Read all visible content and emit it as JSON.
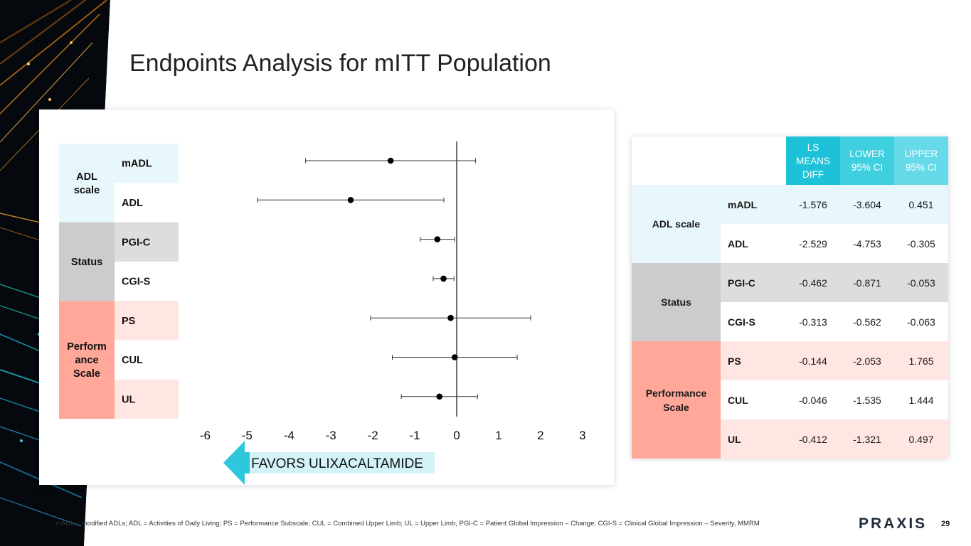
{
  "title": "Endpoints Analysis for mITT Population",
  "footnote": "mADL = modified ADLs; ADL = Activities of Daily Living; PS = Performance Subscale; CUL = Combined Upper Limb; UL = Upper Limb, PGI-C = Patient Global Impression – Change; CGI-S = Clinical Global Impression – Severity, MMRM",
  "logo_text": "PRAXIS",
  "page_number": "29",
  "colors": {
    "adl_group": "#e8f7fb",
    "status_group": "#cccccc",
    "status_row_shade": "#dddddd",
    "performance_group": "#ffa89a",
    "performance_row_shade": "#ffe6e2",
    "header_ls": "#1ec2d8",
    "header_lower": "#3fd0e0",
    "header_upper": "#66dae8",
    "arrow": "#2ec7dc",
    "arrow_band": "#d3f3f8"
  },
  "chart_data": {
    "type": "forest",
    "x_ticks": [
      -6,
      -5,
      -4,
      -3,
      -2,
      -1,
      0,
      1,
      2,
      3
    ],
    "xlim": [
      -6,
      3
    ],
    "reference_line": 0,
    "arrow_label": "FAVORS ULIXACALTAMIDE",
    "groups": [
      {
        "label": "ADL scale",
        "plot_label": "ADL\nscale",
        "color_key": "adl_group",
        "rows": [
          {
            "label": "mADL",
            "estimate": -1.576,
            "lower": -3.604,
            "upper": 0.451,
            "shade": "adl_group"
          },
          {
            "label": "ADL",
            "estimate": -2.529,
            "lower": -4.753,
            "upper": -0.305,
            "shade": "none"
          }
        ]
      },
      {
        "label": "Status",
        "plot_label": "Status",
        "color_key": "status_group",
        "rows": [
          {
            "label": "PGI-C",
            "estimate": -0.462,
            "lower": -0.871,
            "upper": -0.053,
            "shade": "status_row_shade"
          },
          {
            "label": "CGI-S",
            "estimate": -0.313,
            "lower": -0.562,
            "upper": -0.063,
            "shade": "none"
          }
        ]
      },
      {
        "label": "Performance\nScale",
        "plot_label": "Perform\nance\nScale",
        "color_key": "performance_group",
        "rows": [
          {
            "label": "PS",
            "estimate": -0.144,
            "lower": -2.053,
            "upper": 1.765,
            "shade": "performance_row_shade"
          },
          {
            "label": "CUL",
            "estimate": -0.046,
            "lower": -1.535,
            "upper": 1.444,
            "shade": "none"
          },
          {
            "label": "UL",
            "estimate": -0.412,
            "lower": -1.321,
            "upper": 0.497,
            "shade": "performance_row_shade"
          }
        ]
      }
    ]
  },
  "table": {
    "headers": [
      "LS\nMEANS\nDIFF",
      "LOWER\n95% CI",
      "UPPER\n95% CI"
    ],
    "rows": [
      {
        "group": "ADL scale",
        "sub": "mADL",
        "ls": "-1.576",
        "lower": "-3.604",
        "upper": "0.451"
      },
      {
        "group": "ADL scale",
        "sub": "ADL",
        "ls": "-2.529",
        "lower": "-4.753",
        "upper": "-0.305"
      },
      {
        "group": "Status",
        "sub": "PGI-C",
        "ls": "-0.462",
        "lower": "-0.871",
        "upper": "-0.053"
      },
      {
        "group": "Status",
        "sub": "CGI-S",
        "ls": "-0.313",
        "lower": "-0.562",
        "upper": "-0.063"
      },
      {
        "group": "Performance\nScale",
        "sub": "PS",
        "ls": "-0.144",
        "lower": "-2.053",
        "upper": "1.765"
      },
      {
        "group": "Performance\nScale",
        "sub": "CUL",
        "ls": "-0.046",
        "lower": "-1.535",
        "upper": "1.444"
      },
      {
        "group": "Performance\nScale",
        "sub": "UL",
        "ls": "-0.412",
        "lower": "-1.321",
        "upper": "0.497"
      }
    ]
  }
}
